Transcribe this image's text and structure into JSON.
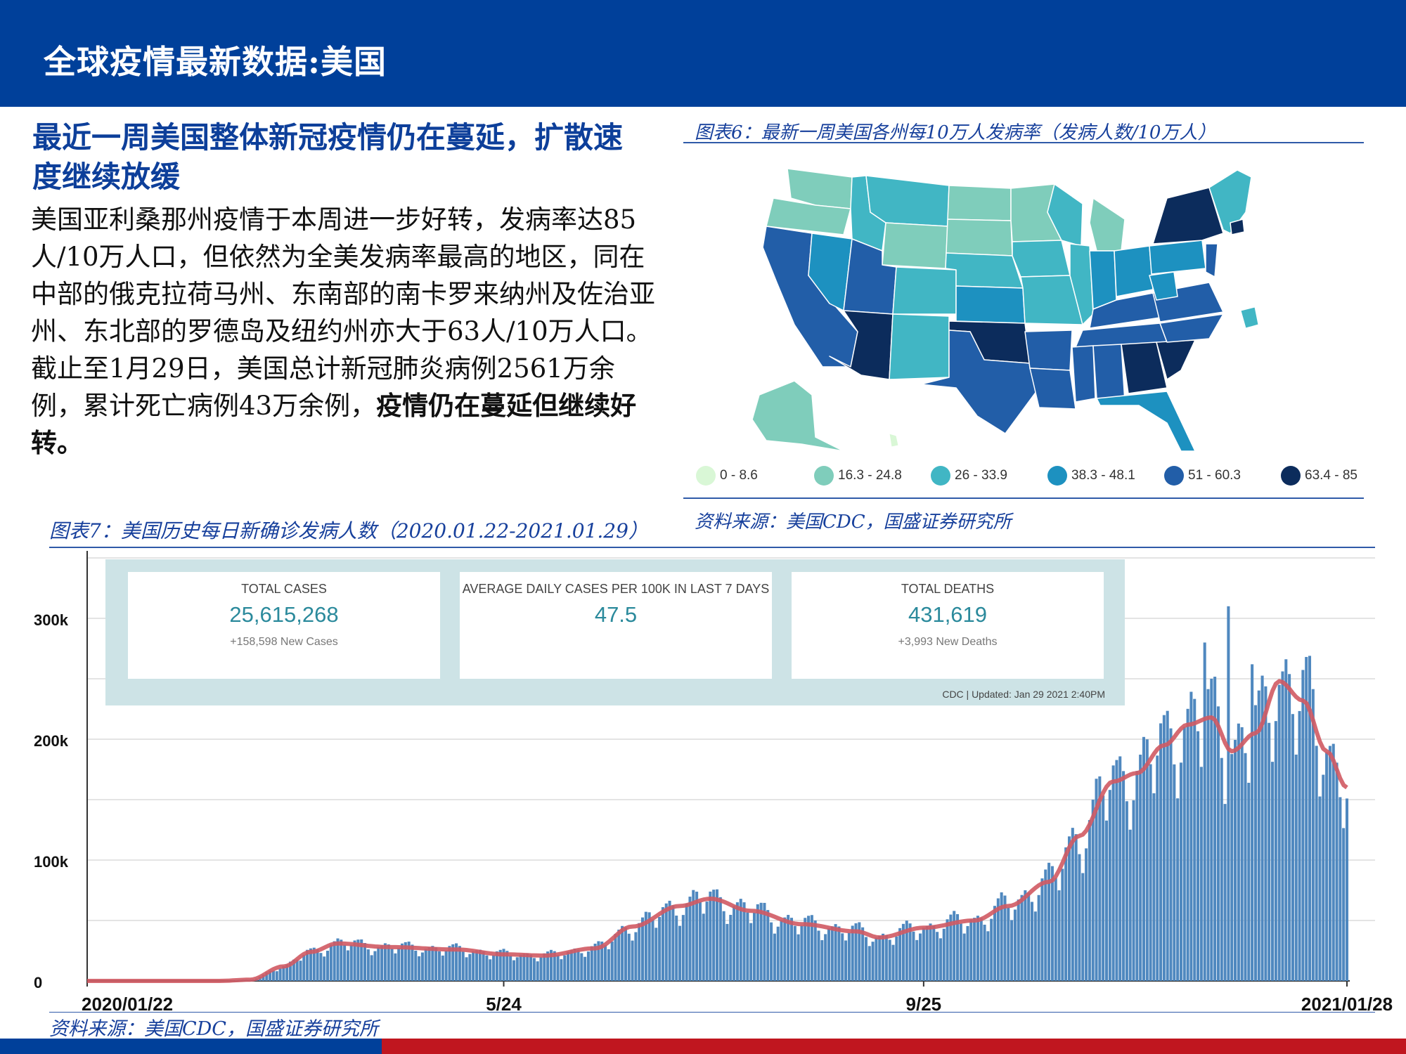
{
  "header": {
    "title": "全球疫情最新数据:美国"
  },
  "headline": "最近一周美国整体新冠疫情仍在蔓延，扩散速度继续放缓",
  "body": {
    "p1": "美国亚利桑那州疫情于本周进一步好转，发病率达85人/10万人口，但依然为全美发病率最高的地区，同在中部的俄克拉荷马州、东南部的南卡罗来纳州及佐治亚州、东北部的罗德岛及纽约州亦大于63人/10万人口。",
    "p2_normal": "截止至1月29日，美国总计新冠肺炎病例2561万余例，累计死亡病例43万余例，",
    "p2_bold": "疫情仍在蔓延但继续好转。"
  },
  "figure6": {
    "title": "图表6：最新一周美国各州每10万人发病率（发病人数/10万人）",
    "source": "资料来源：美国CDC，国盛证券研究所",
    "legend": [
      {
        "label": "0 - 8.6",
        "color": "#d9f7d6"
      },
      {
        "label": "16.3 - 24.8",
        "color": "#7fcdbb"
      },
      {
        "label": "26 - 33.9",
        "color": "#41b6c4"
      },
      {
        "label": "38.3 - 48.1",
        "color": "#1d91c0"
      },
      {
        "label": "51 - 60.3",
        "color": "#225ea8"
      },
      {
        "label": "63.4 - 85",
        "color": "#0c2c5c"
      }
    ]
  },
  "figure7": {
    "title": "图表7：美国历史每日新确诊发病人数（2020.01.22-2021.01.29）",
    "source": "资料来源：美国CDC，国盛证券研究所"
  },
  "stats": {
    "cards": [
      {
        "label": "TOTAL CASES",
        "value": "25,615,268",
        "sub": "+158,598 New Cases"
      },
      {
        "label": "AVERAGE DAILY CASES PER 100K IN LAST 7 DAYS",
        "value": "47.5",
        "sub": ""
      },
      {
        "label": "TOTAL DEATHS",
        "value": "431,619",
        "sub": "+3,993 New Deaths"
      }
    ],
    "updated": "CDC | Updated: Jan 29 2021 2:40PM"
  },
  "chart_data": {
    "type": "bar",
    "x_range": [
      "2020/01/22",
      "2021/01/28"
    ],
    "xtick_labels": [
      "2020/01/22",
      "5/24",
      "9/25",
      "2021/01/28"
    ],
    "ytick_labels": [
      "0",
      "100k",
      "200k",
      "300k"
    ],
    "ylim": [
      0,
      350000
    ],
    "y_tick_values": [
      0,
      100000,
      200000,
      300000
    ],
    "grid": true,
    "bar_color": "#4f88bf",
    "line_color": "#d05a63",
    "anchors": [
      {
        "date": "2020-01-22",
        "value": 0
      },
      {
        "date": "2020-03-01",
        "value": 0
      },
      {
        "date": "2020-03-10",
        "value": 1000
      },
      {
        "date": "2020-03-20",
        "value": 12000
      },
      {
        "date": "2020-03-28",
        "value": 24000
      },
      {
        "date": "2020-04-05",
        "value": 31000
      },
      {
        "date": "2020-04-20",
        "value": 28000
      },
      {
        "date": "2020-05-10",
        "value": 26000
      },
      {
        "date": "2020-05-24",
        "value": 22000
      },
      {
        "date": "2020-06-05",
        "value": 21000
      },
      {
        "date": "2020-06-20",
        "value": 27000
      },
      {
        "date": "2020-07-01",
        "value": 45000
      },
      {
        "date": "2020-07-15",
        "value": 62000
      },
      {
        "date": "2020-07-24",
        "value": 68000
      },
      {
        "date": "2020-08-05",
        "value": 58000
      },
      {
        "date": "2020-08-20",
        "value": 47000
      },
      {
        "date": "2020-09-05",
        "value": 41000
      },
      {
        "date": "2020-09-12",
        "value": 36000
      },
      {
        "date": "2020-09-25",
        "value": 44000
      },
      {
        "date": "2020-10-10",
        "value": 50000
      },
      {
        "date": "2020-10-20",
        "value": 62000
      },
      {
        "date": "2020-11-01",
        "value": 82000
      },
      {
        "date": "2020-11-10",
        "value": 120000
      },
      {
        "date": "2020-11-20",
        "value": 165000
      },
      {
        "date": "2020-11-27",
        "value": 172000
      },
      {
        "date": "2020-12-05",
        "value": 195000
      },
      {
        "date": "2020-12-12",
        "value": 212000
      },
      {
        "date": "2020-12-19",
        "value": 218000
      },
      {
        "date": "2020-12-25",
        "value": 190000
      },
      {
        "date": "2021-01-01",
        "value": 205000
      },
      {
        "date": "2021-01-08",
        "value": 248000
      },
      {
        "date": "2021-01-15",
        "value": 232000
      },
      {
        "date": "2021-01-22",
        "value": 190000
      },
      {
        "date": "2021-01-28",
        "value": 160000
      }
    ]
  }
}
